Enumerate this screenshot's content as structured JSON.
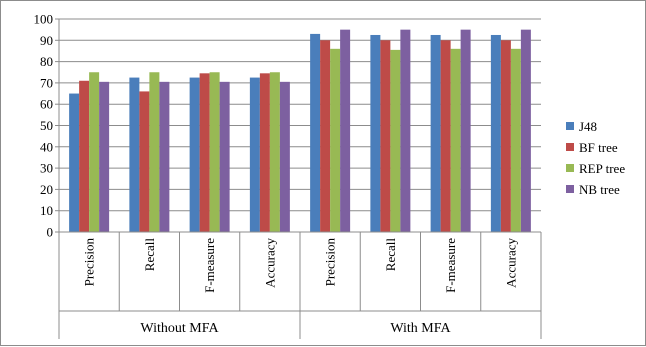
{
  "chart_data": {
    "type": "bar",
    "groups": [
      {
        "label": "Without MFA",
        "categories": [
          "Precision",
          "Recall",
          "F-measure",
          "Accuracy"
        ]
      },
      {
        "label": "With MFA",
        "categories": [
          "Precision",
          "Recall",
          "F-measure",
          "Accuracy"
        ]
      }
    ],
    "series": [
      {
        "name": "J48",
        "color": "#4a7ebb",
        "values": [
          65,
          72.5,
          72.5,
          72.5,
          93,
          92.5,
          92.5,
          92.5
        ]
      },
      {
        "name": "BF tree",
        "color": "#be4b48",
        "values": [
          71,
          66,
          74.5,
          74.5,
          90,
          90,
          90,
          90
        ]
      },
      {
        "name": "REP tree",
        "color": "#98b954",
        "values": [
          75,
          75,
          75,
          75,
          86,
          85.5,
          86,
          86
        ]
      },
      {
        "name": "NB tree",
        "color": "#7d60a0",
        "values": [
          70.5,
          70.5,
          70.5,
          70.5,
          95,
          95,
          95,
          95
        ]
      }
    ],
    "yticks": [
      "0",
      "10",
      "20",
      "30",
      "40",
      "50",
      "60",
      "70",
      "80",
      "90",
      "100"
    ],
    "ylim": [
      0,
      100
    ],
    "grid": true,
    "legend_position": "right"
  }
}
